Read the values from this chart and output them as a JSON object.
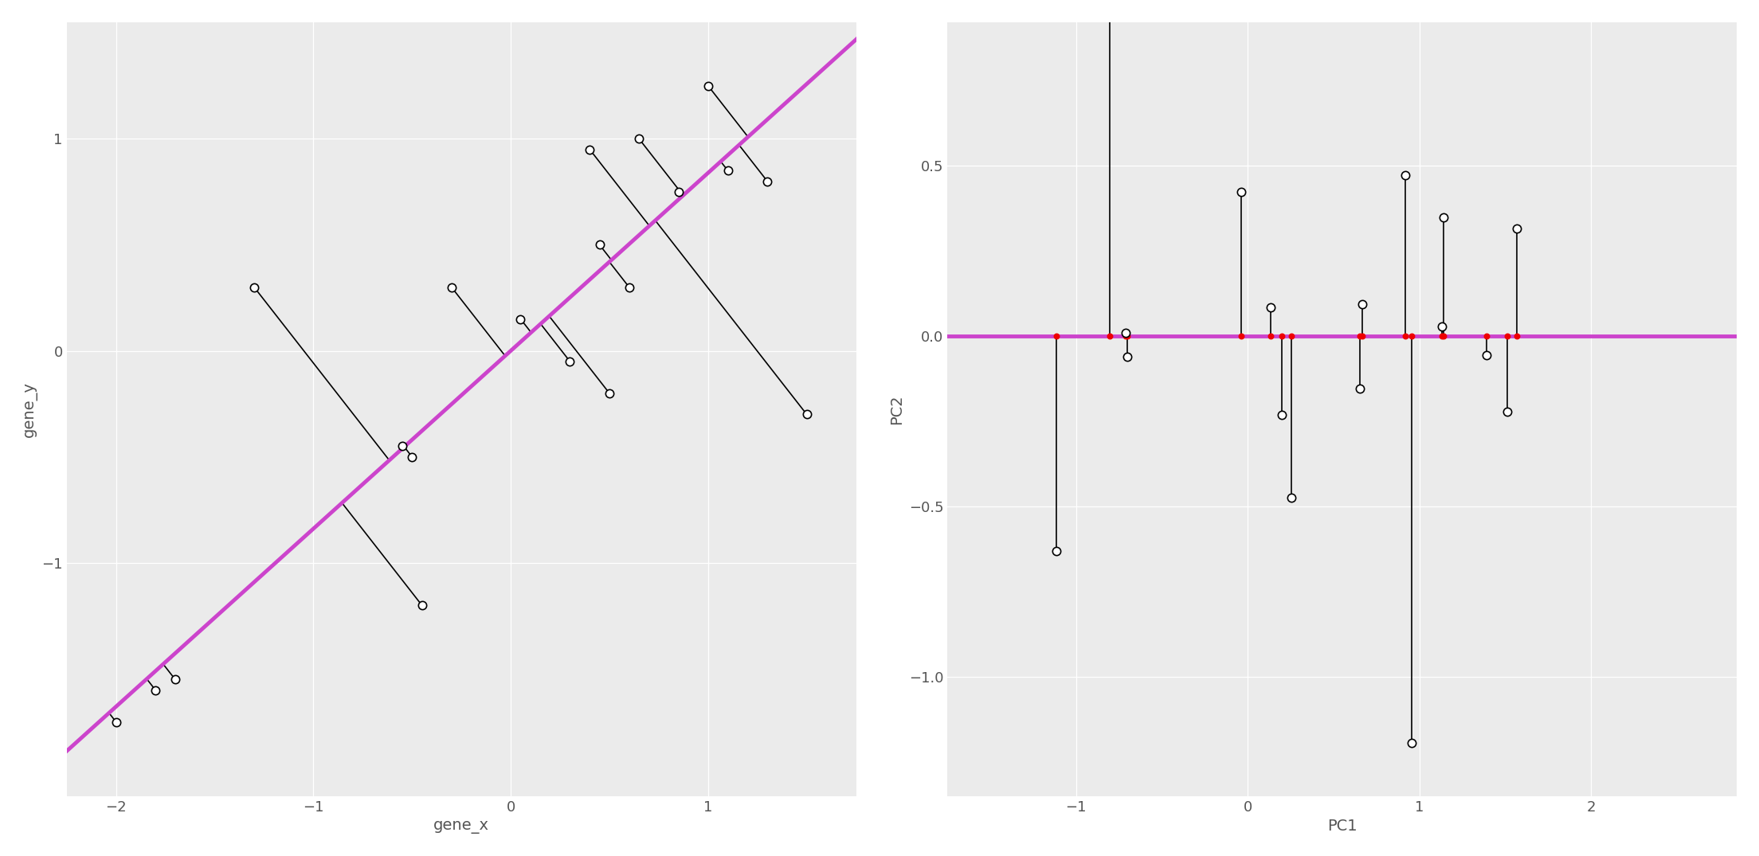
{
  "points_raw": [
    [
      -2.0,
      -1.75
    ],
    [
      -1.8,
      -1.6
    ],
    [
      -1.7,
      -1.55
    ],
    [
      -1.3,
      0.3
    ],
    [
      -0.55,
      -0.45
    ],
    [
      -0.5,
      -0.5
    ],
    [
      -0.45,
      -1.2
    ],
    [
      -0.3,
      0.3
    ],
    [
      0.05,
      0.15
    ],
    [
      0.3,
      -0.05
    ],
    [
      0.4,
      0.95
    ],
    [
      0.45,
      0.5
    ],
    [
      0.5,
      -0.2
    ],
    [
      0.6,
      0.3
    ],
    [
      0.65,
      1.0
    ],
    [
      0.85,
      0.75
    ],
    [
      1.0,
      1.25
    ],
    [
      1.1,
      0.85
    ],
    [
      1.3,
      0.8
    ],
    [
      1.5,
      -0.3
    ]
  ],
  "background_color": "#EBEBEB",
  "purple_color": "#CC44CC",
  "segment_color": "#000000",
  "red_dot_color": "#EE0000",
  "dot_facecolor": "white",
  "dot_edgecolor": "#000000",
  "xlim_left": [
    -2.25,
    1.75
  ],
  "ylim_left": [
    -2.1,
    1.55
  ],
  "xlim_right": [
    -1.75,
    2.85
  ],
  "ylim_right": [
    -1.35,
    0.92
  ],
  "xlabel_left": "gene_x",
  "ylabel_left": "gene_y",
  "xlabel_right": "PC1",
  "ylabel_right": "PC2",
  "xticks_left": [
    -2,
    -1,
    0,
    1
  ],
  "yticks_left": [
    -1,
    0,
    1
  ],
  "xticks_right": [
    -1,
    0,
    1,
    2
  ],
  "yticks_right": [
    -1.0,
    -0.5,
    0.0,
    0.5
  ],
  "line_lw": 3.5,
  "seg_lw": 1.2,
  "dot_size": 55
}
